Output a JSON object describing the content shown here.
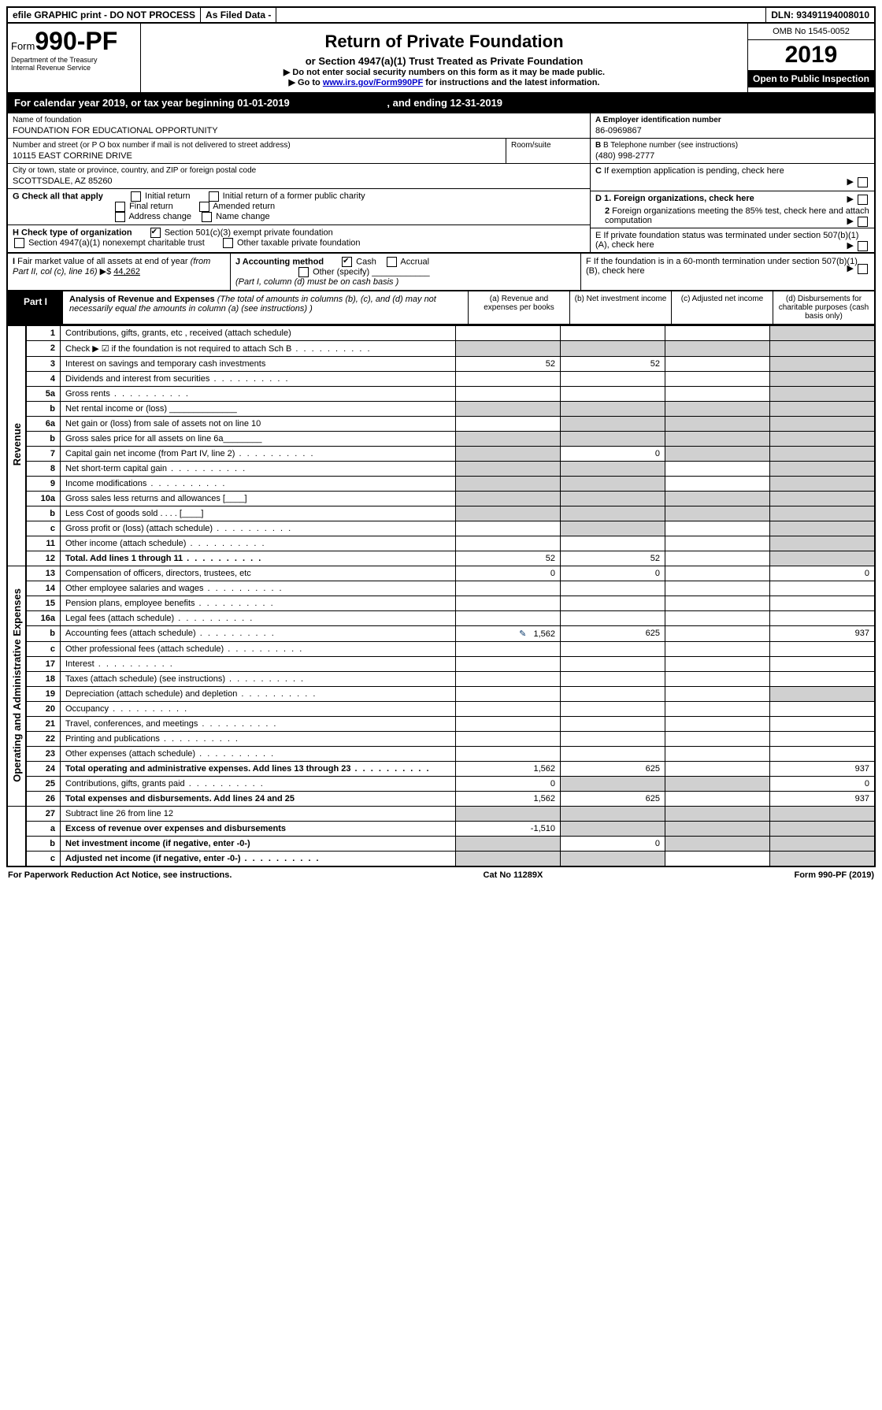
{
  "topbar": {
    "efile": "efile GRAPHIC print - DO NOT PROCESS",
    "asfiled": "As Filed Data -",
    "dln_label": "DLN:",
    "dln": "93491194008010"
  },
  "header": {
    "form_prefix": "Form",
    "form_number": "990-PF",
    "dept": "Department of the Treasury\nInternal Revenue Service",
    "title": "Return of Private Foundation",
    "subtitle": "or Section 4947(a)(1) Trust Treated as Private Foundation",
    "note1": "▶ Do not enter social security numbers on this form as it may be made public.",
    "note2_pre": "▶ Go to ",
    "note2_link": "www.irs.gov/Form990PF",
    "note2_post": " for instructions and the latest information.",
    "omb": "OMB No 1545-0052",
    "year": "2019",
    "open": "Open to Public Inspection"
  },
  "calyear": {
    "text_pre": "For calendar year 2019, or tax year beginning ",
    "begin": "01-01-2019",
    "text_mid": " , and ending ",
    "end": "12-31-2019"
  },
  "info": {
    "name_lbl": "Name of foundation",
    "name": "FOUNDATION FOR EDUCATIONAL OPPORTUNITY",
    "addr_lbl": "Number and street (or P O  box number if mail is not delivered to street address)",
    "room_lbl": "Room/suite",
    "addr": "10115 EAST CORRINE DRIVE",
    "city_lbl": "City or town, state or province, country, and ZIP or foreign postal code",
    "city": "SCOTTSDALE, AZ  85260",
    "a_lbl": "A Employer identification number",
    "a_val": "86-0969867",
    "b_lbl": "B Telephone number (see instructions)",
    "b_val": "(480) 998-2777",
    "c_lbl": "C If exemption application is pending, check here"
  },
  "g": {
    "label": "G Check all that apply",
    "opts": [
      "Initial return",
      "Initial return of a former public charity",
      "Final return",
      "Amended return",
      "Address change",
      "Name change"
    ]
  },
  "h": {
    "label": "H Check type of organization",
    "opt1": "Section 501(c)(3) exempt private foundation",
    "opt2": "Section 4947(a)(1) nonexempt charitable trust",
    "opt3": "Other taxable private foundation"
  },
  "d": {
    "d1": "D 1. Foreign organizations, check here",
    "d2": "2 Foreign organizations meeting the 85% test, check here and attach computation",
    "e": "E  If private foundation status was terminated under section 507(b)(1)(A), check here",
    "f": "F  If the foundation is in a 60-month termination under section 507(b)(1)(B), check here"
  },
  "i": {
    "label": "I Fair market value of all assets at end of year (from Part II, col  (c), line 16)",
    "val": "44,262"
  },
  "j": {
    "label": "J Accounting method",
    "cash": "Cash",
    "accrual": "Accrual",
    "other": "Other (specify)",
    "note": "(Part I, column (d) must be on cash basis )"
  },
  "part1": {
    "tab": "Part I",
    "title": "Analysis of Revenue and Expenses",
    "desc": " (The total of amounts in columns (b), (c), and (d) may not necessarily equal the amounts in column (a) (see instructions) )",
    "col_a": "(a) Revenue and expenses per books",
    "col_b": "(b) Net investment income",
    "col_c": "(c) Adjusted net income",
    "col_d": "(d) Disbursements for charitable purposes (cash basis only)"
  },
  "side_rev": "Revenue",
  "side_exp": "Operating and Administrative Expenses",
  "lines": [
    {
      "num": "1",
      "desc": "Contributions, gifts, grants, etc , received (attach schedule)",
      "a": "",
      "b": "",
      "c": "",
      "d": "",
      "dgrey": true
    },
    {
      "num": "2",
      "desc": "Check ▶ ☑ if the foundation is not required to attach Sch  B",
      "dots": true,
      "a": "",
      "agrey": true,
      "b": "",
      "bgrey": true,
      "c": "",
      "cgrey": true,
      "d": "",
      "dgrey": true
    },
    {
      "num": "3",
      "desc": "Interest on savings and temporary cash investments",
      "a": "52",
      "b": "52",
      "c": "",
      "d": "",
      "dgrey": true
    },
    {
      "num": "4",
      "desc": "Dividends and interest from securities",
      "dots": true,
      "a": "",
      "b": "",
      "c": "",
      "d": "",
      "dgrey": true
    },
    {
      "num": "5a",
      "desc": "Gross rents",
      "dots": true,
      "a": "",
      "b": "",
      "c": "",
      "d": "",
      "dgrey": true
    },
    {
      "num": "b",
      "desc": "Net rental income or (loss)  ______________",
      "a": "",
      "agrey": true,
      "b": "",
      "bgrey": true,
      "c": "",
      "cgrey": true,
      "d": "",
      "dgrey": true
    },
    {
      "num": "6a",
      "desc": "Net gain or (loss) from sale of assets not on line 10",
      "a": "",
      "b": "",
      "bgrey": true,
      "c": "",
      "cgrey": true,
      "d": "",
      "dgrey": true
    },
    {
      "num": "b",
      "desc": "Gross sales price for all assets on line 6a________",
      "a": "",
      "agrey": true,
      "b": "",
      "bgrey": true,
      "c": "",
      "cgrey": true,
      "d": "",
      "dgrey": true
    },
    {
      "num": "7",
      "desc": "Capital gain net income (from Part IV, line 2)",
      "dots": true,
      "a": "",
      "agrey": true,
      "b": "0",
      "c": "",
      "cgrey": true,
      "d": "",
      "dgrey": true
    },
    {
      "num": "8",
      "desc": "Net short-term capital gain",
      "dots": true,
      "a": "",
      "agrey": true,
      "b": "",
      "bgrey": true,
      "c": "",
      "d": "",
      "dgrey": true
    },
    {
      "num": "9",
      "desc": "Income modifications",
      "dots": true,
      "a": "",
      "agrey": true,
      "b": "",
      "bgrey": true,
      "c": "",
      "d": "",
      "dgrey": true
    },
    {
      "num": "10a",
      "desc": "Gross sales less returns and allowances  [____]",
      "a": "",
      "agrey": true,
      "b": "",
      "bgrey": true,
      "c": "",
      "cgrey": true,
      "d": "",
      "dgrey": true
    },
    {
      "num": "b",
      "desc": "Less  Cost of goods sold    . . . .  [____]",
      "a": "",
      "agrey": true,
      "b": "",
      "bgrey": true,
      "c": "",
      "cgrey": true,
      "d": "",
      "dgrey": true
    },
    {
      "num": "c",
      "desc": "Gross profit or (loss) (attach schedule)",
      "dots": true,
      "a": "",
      "b": "",
      "bgrey": true,
      "c": "",
      "d": "",
      "dgrey": true
    },
    {
      "num": "11",
      "desc": "Other income (attach schedule)",
      "dots": true,
      "a": "",
      "b": "",
      "c": "",
      "d": "",
      "dgrey": true
    },
    {
      "num": "12",
      "desc": "Total. Add lines 1 through 11",
      "dots": true,
      "bold": true,
      "a": "52",
      "b": "52",
      "c": "",
      "d": "",
      "dgrey": true
    },
    {
      "num": "13",
      "desc": "Compensation of officers, directors, trustees, etc",
      "a": "0",
      "b": "0",
      "c": "",
      "d": "0",
      "section": "exp"
    },
    {
      "num": "14",
      "desc": "Other employee salaries and wages",
      "dots": true,
      "a": "",
      "b": "",
      "c": "",
      "d": ""
    },
    {
      "num": "15",
      "desc": "Pension plans, employee benefits",
      "dots": true,
      "a": "",
      "b": "",
      "c": "",
      "d": ""
    },
    {
      "num": "16a",
      "desc": "Legal fees (attach schedule)",
      "dots": true,
      "a": "",
      "b": "",
      "c": "",
      "d": ""
    },
    {
      "num": "b",
      "desc": "Accounting fees (attach schedule)",
      "dots": true,
      "icon": true,
      "a": "1,562",
      "b": "625",
      "c": "",
      "d": "937"
    },
    {
      "num": "c",
      "desc": "Other professional fees (attach schedule)",
      "dots": true,
      "a": "",
      "b": "",
      "c": "",
      "d": ""
    },
    {
      "num": "17",
      "desc": "Interest",
      "dots": true,
      "a": "",
      "b": "",
      "c": "",
      "d": ""
    },
    {
      "num": "18",
      "desc": "Taxes (attach schedule) (see instructions)",
      "dots": true,
      "a": "",
      "b": "",
      "c": "",
      "d": ""
    },
    {
      "num": "19",
      "desc": "Depreciation (attach schedule) and depletion",
      "dots": true,
      "a": "",
      "b": "",
      "c": "",
      "d": "",
      "dgrey": true
    },
    {
      "num": "20",
      "desc": "Occupancy",
      "dots": true,
      "a": "",
      "b": "",
      "c": "",
      "d": ""
    },
    {
      "num": "21",
      "desc": "Travel, conferences, and meetings",
      "dots": true,
      "a": "",
      "b": "",
      "c": "",
      "d": ""
    },
    {
      "num": "22",
      "desc": "Printing and publications",
      "dots": true,
      "a": "",
      "b": "",
      "c": "",
      "d": ""
    },
    {
      "num": "23",
      "desc": "Other expenses (attach schedule)",
      "dots": true,
      "a": "",
      "b": "",
      "c": "",
      "d": ""
    },
    {
      "num": "24",
      "desc": "Total operating and administrative expenses. Add lines 13 through 23",
      "dots": true,
      "bold": true,
      "a": "1,562",
      "b": "625",
      "c": "",
      "d": "937"
    },
    {
      "num": "25",
      "desc": "Contributions, gifts, grants paid",
      "dots": true,
      "a": "0",
      "b": "",
      "bgrey": true,
      "c": "",
      "cgrey": true,
      "d": "0"
    },
    {
      "num": "26",
      "desc": "Total expenses and disbursements. Add lines 24 and 25",
      "bold": true,
      "a": "1,562",
      "b": "625",
      "c": "",
      "d": "937"
    },
    {
      "num": "27",
      "desc": "Subtract line 26 from line 12",
      "a": "",
      "agrey": true,
      "b": "",
      "bgrey": true,
      "c": "",
      "cgrey": true,
      "d": "",
      "dgrey": true,
      "section": "sum"
    },
    {
      "num": "a",
      "desc": "Excess of revenue over expenses and disbursements",
      "bold": true,
      "a": "-1,510",
      "b": "",
      "bgrey": true,
      "c": "",
      "cgrey": true,
      "d": "",
      "dgrey": true
    },
    {
      "num": "b",
      "desc": "Net investment income (if negative, enter -0-)",
      "bold": true,
      "a": "",
      "agrey": true,
      "b": "0",
      "c": "",
      "cgrey": true,
      "d": "",
      "dgrey": true
    },
    {
      "num": "c",
      "desc": "Adjusted net income (if negative, enter -0-)",
      "dots": true,
      "bold": true,
      "a": "",
      "agrey": true,
      "b": "",
      "bgrey": true,
      "c": "",
      "d": "",
      "dgrey": true
    }
  ],
  "footer": {
    "left": "For Paperwork Reduction Act Notice, see instructions.",
    "mid": "Cat  No  11289X",
    "right": "Form 990-PF (2019)"
  }
}
